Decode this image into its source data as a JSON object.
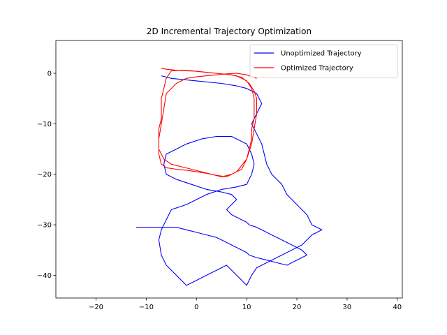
{
  "chart_data": {
    "type": "line",
    "title": "2D Incremental Trajectory Optimization",
    "xlabel": "",
    "ylabel": "",
    "xlim": [
      -28,
      41
    ],
    "ylim": [
      -44.5,
      6.5
    ],
    "xticks": [
      -20,
      -10,
      0,
      10,
      20,
      30,
      40
    ],
    "yticks": [
      0,
      -10,
      -20,
      -30,
      -40
    ],
    "grid": false,
    "legend_position": "top-right",
    "series": [
      {
        "name": "Unoptimized Trajectory",
        "color": "#0000ff",
        "x": [
          -7,
          -5,
          0,
          5,
          8,
          10,
          12,
          13,
          12,
          11,
          12,
          13,
          13.5,
          14,
          15,
          16,
          17,
          17.5,
          18,
          19,
          20,
          21,
          22,
          22.5,
          23,
          24,
          25,
          23,
          22,
          21,
          19,
          17,
          15,
          14,
          13,
          12,
          11,
          10,
          8,
          6,
          4,
          2,
          0,
          -2,
          -4,
          -6,
          -7,
          -7.5,
          -7,
          -6,
          -5,
          -2,
          2,
          5,
          8,
          10,
          11,
          11.5,
          11,
          10,
          7,
          4,
          1,
          -2,
          -4,
          -6,
          -6.5,
          -6,
          -4,
          -1,
          2,
          5,
          7,
          8,
          7,
          6,
          7,
          8,
          9,
          10,
          10.5,
          12,
          13,
          15,
          17,
          19,
          21,
          22,
          20,
          18,
          16,
          14,
          12,
          10.5,
          10,
          9,
          8,
          7,
          6,
          5,
          4,
          2,
          0,
          -2,
          -4,
          -6,
          -8,
          -10,
          -12
        ],
        "y": [
          -0.5,
          -1,
          -1.5,
          -2,
          -2.5,
          -3,
          -4,
          -6,
          -8,
          -10,
          -12,
          -14,
          -16,
          -18,
          -20,
          -21,
          -22,
          -23,
          -24,
          -25,
          -26,
          -27,
          -28,
          -29,
          -30,
          -30.5,
          -31,
          -32,
          -33,
          -34,
          -35,
          -36,
          -37,
          -37.5,
          -38,
          -38.5,
          -40,
          -42,
          -40,
          -38,
          -39,
          -40,
          -41,
          -42,
          -40,
          -38,
          -36,
          -33,
          -31,
          -29,
          -27,
          -26,
          -24,
          -23,
          -22.5,
          -22,
          -20,
          -18,
          -16,
          -14,
          -12.5,
          -12.5,
          -13,
          -14,
          -15,
          -16,
          -18,
          -20,
          -21,
          -22,
          -23,
          -23.5,
          -24,
          -25,
          -26,
          -27,
          -28,
          -28.5,
          -29,
          -29.5,
          -30,
          -30.5,
          -31,
          -32,
          -33,
          -34,
          -35,
          -36,
          -37,
          -38,
          -37.5,
          -37,
          -36.5,
          -36,
          -35.5,
          -35,
          -34.5,
          -34,
          -33.5,
          -33,
          -32.5,
          -32,
          -31.5,
          -31,
          -30.5,
          -30.5,
          -30.5,
          -30.5,
          -30.5
        ]
      },
      {
        "name": "Optimized Trajectory",
        "color": "#ff0000",
        "x": [
          -7,
          -6,
          -4,
          -2,
          0,
          2,
          4,
          6,
          8,
          10,
          11,
          11.5,
          11.5,
          11.5,
          11,
          11,
          10.5,
          10,
          9,
          7,
          5,
          3,
          1,
          -1,
          -3,
          -5,
          -6.5,
          -7.5,
          -7.5,
          -7.5,
          -7,
          -7,
          -7,
          -6.5,
          -6,
          -5,
          -3,
          -1,
          1,
          3,
          5,
          7,
          9,
          10.5,
          11.5,
          12,
          12,
          11.5,
          11,
          10,
          8,
          6,
          4,
          2,
          0,
          -2,
          -4,
          -6,
          -7,
          -7.5,
          -7.5,
          -7,
          -6.5,
          -6,
          -4,
          -2,
          0,
          2,
          4,
          6,
          8,
          10,
          12
        ],
        "y": [
          1,
          0.8,
          0.6,
          0.5,
          0.4,
          0.2,
          0,
          -0.2,
          -0.5,
          -1.5,
          -3,
          -5,
          -7,
          -9,
          -11,
          -13,
          -15,
          -17,
          -19,
          -20,
          -20.5,
          -20,
          -19.5,
          -19,
          -18.5,
          -18,
          -17,
          -15,
          -13,
          -11,
          -9,
          -7,
          -5,
          -3,
          -1,
          0.5,
          0.6,
          0.5,
          0.3,
          0.1,
          -0.1,
          -0.3,
          -0.8,
          -2,
          -3.5,
          -5,
          -8,
          -11,
          -14,
          -17,
          -19.5,
          -20.5,
          -20.2,
          -19.8,
          -19.5,
          -19.2,
          -19,
          -18.7,
          -18,
          -16,
          -13,
          -10,
          -7,
          -4,
          -2,
          -1,
          -0.7,
          -0.5,
          -0.3,
          -0.1,
          0,
          -0.3,
          -1
        ]
      }
    ]
  }
}
